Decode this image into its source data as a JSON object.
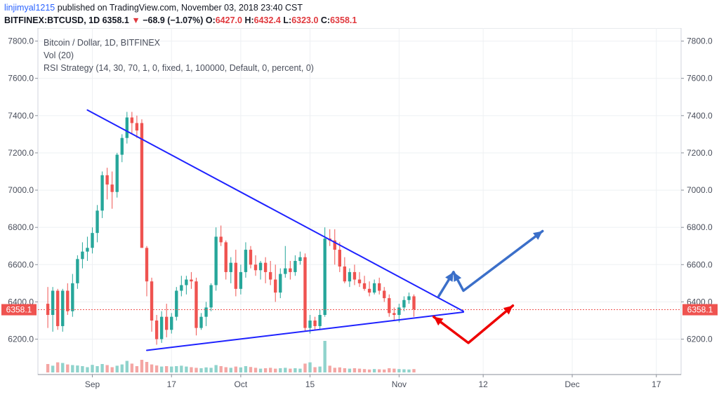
{
  "header": {
    "author": "linjimyal1215",
    "published_text": " published on TradingView.com, November 03, 2018 23:40 CST"
  },
  "quote": {
    "symbol": "BITFINEX:BTCUSD, 1D",
    "last": "6358.1",
    "change": "−68.9 (−1.07%)",
    "open_label": "O:",
    "open": "6427.0",
    "high_label": "H:",
    "high": "6432.4",
    "low_label": "L:",
    "low": "6323.0",
    "close_label": "C:",
    "close": "6358.1"
  },
  "legend": {
    "title": "Bitcoin / Dollar, 1D, BITFINEX",
    "vol": "Vol (20)",
    "strategy": "RSI Strategy (14, 30, 70, 1, 0, fixed, 1, 100000, Default, 0, percent, 0)"
  },
  "colors": {
    "up": "#26a69a",
    "down": "#ef5350",
    "vol_up": "#8fd3cc",
    "vol_down": "#f4a6a4",
    "trendline": "#1e22ff",
    "price_line": "#ef5350",
    "arrow_blue": "#3b6fc9",
    "arrow_red": "#ee0000",
    "grid": "#eef0f3"
  },
  "chart_data": {
    "type": "candlestick",
    "y_ticks": [
      "7800.0",
      "7600.0",
      "7400.0",
      "7200.0",
      "7000.0",
      "6800.0",
      "6600.0",
      "6400.0",
      "6200.0"
    ],
    "y_tick_values": [
      7800,
      7600,
      7400,
      7200,
      7000,
      6800,
      6600,
      6400,
      6200
    ],
    "ylim": [
      6010,
      7870
    ],
    "x_ticks": [
      "Sep",
      "17",
      "Oct",
      "15",
      "Nov",
      "12",
      "Dec",
      "17"
    ],
    "x_tick_days": [
      9,
      25,
      39,
      53,
      71,
      88,
      106,
      123
    ],
    "x_range_days": [
      -2,
      128
    ],
    "current_price": 6358.1,
    "current_price_label": "6358.1",
    "candles": [
      [
        0,
        6390,
        6480,
        6260,
        6330,
        40
      ],
      [
        1,
        6330,
        6480,
        6240,
        6460,
        32
      ],
      [
        2,
        6460,
        6470,
        6250,
        6270,
        48
      ],
      [
        3,
        6270,
        6470,
        6240,
        6460,
        45
      ],
      [
        4,
        6460,
        6500,
        6330,
        6350,
        38
      ],
      [
        5,
        6350,
        6550,
        6320,
        6500,
        35
      ],
      [
        6,
        6500,
        6650,
        6470,
        6630,
        33
      ],
      [
        7,
        6630,
        6720,
        6580,
        6670,
        30
      ],
      [
        8,
        6670,
        6750,
        6620,
        6690,
        25
      ],
      [
        9,
        6690,
        6800,
        6660,
        6770,
        36
      ],
      [
        10,
        6770,
        6920,
        6720,
        6890,
        30
      ],
      [
        11,
        6890,
        7100,
        6850,
        7080,
        40
      ],
      [
        12,
        7080,
        7120,
        6950,
        7030,
        35
      ],
      [
        13,
        7030,
        7100,
        6900,
        6990,
        25
      ],
      [
        14,
        6990,
        7200,
        6960,
        7190,
        32
      ],
      [
        15,
        7190,
        7300,
        7150,
        7280,
        38
      ],
      [
        16,
        7280,
        7420,
        7250,
        7390,
        55
      ],
      [
        17,
        7390,
        7420,
        7300,
        7360,
        42
      ],
      [
        18,
        7360,
        7400,
        7280,
        7320,
        30
      ],
      [
        19,
        7360,
        7380,
        6700,
        6690,
        60
      ],
      [
        20,
        6690,
        6700,
        6430,
        6510,
        50
      ],
      [
        21,
        6510,
        6530,
        6240,
        6300,
        38
      ],
      [
        22,
        6300,
        6330,
        6170,
        6200,
        33
      ],
      [
        23,
        6200,
        6350,
        6180,
        6320,
        28
      ],
      [
        24,
        6320,
        6390,
        6210,
        6250,
        30
      ],
      [
        25,
        6250,
        6340,
        6230,
        6320,
        28
      ],
      [
        26,
        6320,
        6480,
        6300,
        6460,
        30
      ],
      [
        27,
        6460,
        6540,
        6430,
        6490,
        32
      ],
      [
        28,
        6490,
        6540,
        6440,
        6520,
        28
      ],
      [
        29,
        6520,
        6560,
        6470,
        6510,
        25
      ],
      [
        30,
        6510,
        6530,
        6220,
        6260,
        22
      ],
      [
        31,
        6260,
        6340,
        6250,
        6320,
        20
      ],
      [
        32,
        6320,
        6400,
        6270,
        6370,
        24
      ],
      [
        33,
        6370,
        6500,
        6350,
        6490,
        22
      ],
      [
        34,
        6490,
        6800,
        6460,
        6750,
        35
      ],
      [
        35,
        6750,
        6810,
        6700,
        6720,
        30
      ],
      [
        36,
        6720,
        6730,
        6520,
        6560,
        25
      ],
      [
        37,
        6560,
        6640,
        6500,
        6610,
        22
      ],
      [
        38,
        6610,
        6680,
        6430,
        6470,
        28
      ],
      [
        39,
        6470,
        6600,
        6440,
        6560,
        24
      ],
      [
        40,
        6560,
        6720,
        6530,
        6680,
        30
      ],
      [
        41,
        6680,
        6700,
        6580,
        6600,
        26
      ],
      [
        42,
        6600,
        6650,
        6540,
        6570,
        22
      ],
      [
        43,
        6570,
        6620,
        6520,
        6610,
        18
      ],
      [
        44,
        6610,
        6640,
        6500,
        6560,
        20
      ],
      [
        45,
        6560,
        6620,
        6490,
        6520,
        22
      ],
      [
        46,
        6520,
        6600,
        6400,
        6450,
        18
      ],
      [
        47,
        6450,
        6580,
        6420,
        6550,
        20
      ],
      [
        48,
        6550,
        6700,
        6530,
        6580,
        22
      ],
      [
        49,
        6580,
        6620,
        6520,
        6560,
        18
      ],
      [
        50,
        6560,
        6650,
        6540,
        6620,
        20
      ],
      [
        51,
        6620,
        6670,
        6600,
        6640,
        18
      ],
      [
        52,
        6640,
        6660,
        6240,
        6260,
        42
      ],
      [
        53,
        6260,
        6330,
        6230,
        6300,
        48
      ],
      [
        54,
        6300,
        6320,
        6250,
        6270,
        25
      ],
      [
        55,
        6270,
        6360,
        6250,
        6330,
        28
      ],
      [
        56,
        6330,
        6800,
        6320,
        6740,
        150
      ],
      [
        57,
        6740,
        6790,
        6700,
        6730,
        32
      ],
      [
        58,
        6730,
        6790,
        6600,
        6680,
        22
      ],
      [
        59,
        6680,
        6720,
        6560,
        6590,
        24
      ],
      [
        60,
        6590,
        6640,
        6500,
        6510,
        20
      ],
      [
        61,
        6510,
        6580,
        6480,
        6560,
        18
      ],
      [
        62,
        6560,
        6600,
        6490,
        6520,
        20
      ],
      [
        63,
        6520,
        6560,
        6480,
        6500,
        18
      ],
      [
        64,
        6500,
        6540,
        6460,
        6470,
        16
      ],
      [
        65,
        6470,
        6510,
        6430,
        6450,
        14
      ],
      [
        66,
        6450,
        6520,
        6440,
        6500,
        16
      ],
      [
        67,
        6500,
        6530,
        6440,
        6460,
        15
      ],
      [
        68,
        6460,
        6480,
        6400,
        6420,
        14
      ],
      [
        69,
        6420,
        6440,
        6320,
        6340,
        20
      ],
      [
        70,
        6340,
        6370,
        6300,
        6330,
        18
      ],
      [
        71,
        6330,
        6390,
        6290,
        6370,
        16
      ],
      [
        72,
        6370,
        6430,
        6350,
        6410,
        15
      ],
      [
        73,
        6410,
        6450,
        6390,
        6430,
        14
      ],
      [
        74,
        6430,
        6440,
        6320,
        6360,
        16
      ]
    ]
  },
  "drawings": {
    "upper_trendline": [
      [
        8,
        7430
      ],
      [
        84,
        6350
      ]
    ],
    "lower_trendline": [
      [
        20,
        6140
      ],
      [
        84,
        6345
      ]
    ],
    "blue_arrow_1": [
      [
        79,
        6430
      ],
      [
        82,
        6560
      ]
    ],
    "blue_arrow_2": [
      [
        82,
        6560
      ],
      [
        84,
        6460
      ],
      [
        100,
        6780
      ]
    ],
    "red_arrow": [
      [
        78,
        6320
      ],
      [
        85,
        6180
      ],
      [
        94,
        6380
      ]
    ]
  }
}
